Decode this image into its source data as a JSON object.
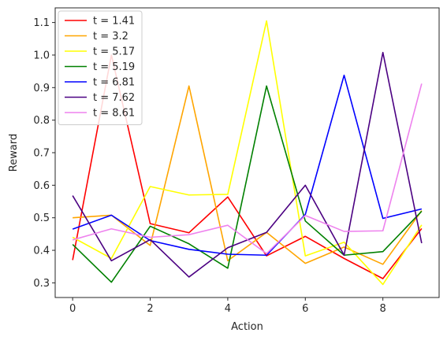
{
  "chart_data": {
    "type": "line",
    "title": "",
    "xlabel": "Action",
    "ylabel": "Reward",
    "xlim": [
      -0.45,
      9.45
    ],
    "ylim": [
      0.255,
      1.145
    ],
    "xticks": [
      0,
      2,
      4,
      6,
      8
    ],
    "yticks": [
      0.3,
      0.4,
      0.5,
      0.6,
      0.7,
      0.8,
      0.9,
      1.0,
      1.1
    ],
    "grid": false,
    "legend_position": "top-left",
    "x": [
      0,
      1,
      2,
      3,
      4,
      5,
      6,
      7,
      8,
      9
    ],
    "series": [
      {
        "name": "t = 1.41",
        "color": "#ff0000",
        "values": [
          0.37,
          1.0,
          0.482,
          0.454,
          0.564,
          0.383,
          0.443,
          0.375,
          0.313,
          0.467
        ]
      },
      {
        "name": "t = 3.2",
        "color": "#ffa500",
        "values": [
          0.5,
          0.508,
          0.415,
          0.905,
          0.368,
          0.455,
          0.36,
          0.41,
          0.357,
          0.522
        ]
      },
      {
        "name": "t = 5.17",
        "color": "#ffff00",
        "values": [
          0.44,
          0.375,
          0.596,
          0.57,
          0.572,
          1.105,
          0.383,
          0.425,
          0.295,
          0.478
        ]
      },
      {
        "name": "t = 5.19",
        "color": "#008000",
        "values": [
          0.418,
          0.302,
          0.474,
          0.42,
          0.345,
          0.905,
          0.49,
          0.385,
          0.396,
          0.52
        ]
      },
      {
        "name": "t = 6.81",
        "color": "#0000ff",
        "values": [
          0.465,
          0.508,
          0.43,
          0.403,
          0.388,
          0.385,
          0.51,
          0.938,
          0.498,
          0.527
        ]
      },
      {
        "name": "t = 7.62",
        "color": "#4b0082",
        "values": [
          0.568,
          0.368,
          0.433,
          0.318,
          0.408,
          0.455,
          0.6,
          0.385,
          1.008,
          0.422
        ]
      },
      {
        "name": "t = 8.61",
        "color": "#ee82ee",
        "values": [
          0.432,
          0.466,
          0.44,
          0.448,
          0.477,
          0.39,
          0.507,
          0.458,
          0.46,
          0.912
        ]
      }
    ]
  }
}
